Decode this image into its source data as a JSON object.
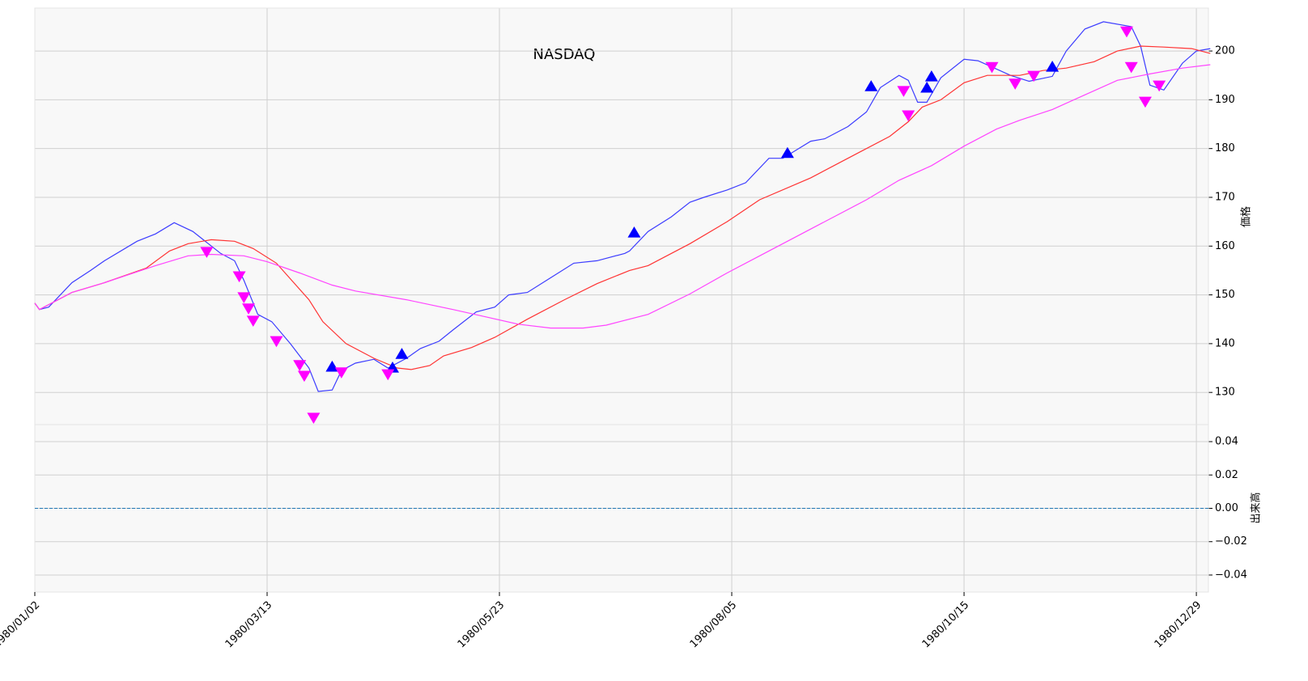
{
  "chart_data": [
    {
      "type": "line",
      "title": "NASDAQ",
      "ylabel": "価格",
      "xlim": [
        0,
        252.6
      ],
      "ylim": [
        123.4,
        208.8
      ],
      "yticks": [
        130,
        140,
        150,
        160,
        170,
        180,
        190,
        200
      ],
      "grid": true,
      "series": [
        {
          "color": "#3c3cff",
          "x": [
            0,
            1,
            3,
            8,
            12,
            15,
            22,
            26,
            30,
            34,
            40,
            43,
            45,
            48,
            51,
            55,
            59,
            61,
            64,
            66,
            69,
            73,
            76,
            80,
            83,
            87,
            90,
            95,
            99,
            102,
            106,
            111,
            116,
            121,
            127,
            128,
            132,
            137,
            141,
            144,
            149,
            153,
            158,
            161,
            167,
            170,
            175,
            179,
            182,
            186,
            188,
            190,
            192,
            195,
            200,
            203,
            210,
            214,
            219,
            222,
            226,
            230,
            236,
            238,
            240,
            243,
            247,
            250,
            253
          ],
          "values": [
            148.3,
            147,
            147.5,
            152.5,
            155,
            157,
            161,
            162.5,
            164.8,
            163,
            158.5,
            157,
            153,
            146,
            144.5,
            140,
            135,
            130.2,
            130.5,
            134.5,
            136,
            136.8,
            135,
            137,
            139,
            140.5,
            142.8,
            146.5,
            147.5,
            150,
            150.5,
            153.5,
            156.5,
            157,
            158.5,
            159,
            163,
            166,
            169,
            170,
            171.5,
            173,
            178,
            178,
            181.5,
            182,
            184.5,
            187.5,
            192.5,
            195,
            194,
            189.5,
            189.5,
            194.5,
            198.3,
            198,
            195,
            193.8,
            194.8,
            200,
            204.5,
            206,
            205,
            201,
            193,
            192,
            197.5,
            200,
            200.5
          ]
        },
        {
          "color": "#ff3333",
          "x": [
            0,
            1,
            8,
            15,
            24,
            29,
            33,
            38,
            43,
            47,
            52,
            59,
            62,
            67,
            73,
            78,
            81,
            85,
            88,
            94,
            99,
            106,
            114,
            121,
            128,
            132,
            141,
            149,
            156,
            167,
            177,
            184,
            188,
            191,
            195,
            200,
            205,
            212,
            217,
            222,
            228,
            233,
            238,
            243,
            249,
            253
          ],
          "values": [
            148.3,
            147,
            150.5,
            152.5,
            155.5,
            159,
            160.5,
            161.3,
            161,
            159.5,
            156.5,
            149,
            144.5,
            140,
            137,
            135,
            134.7,
            135.5,
            137.5,
            139.2,
            141.3,
            145,
            149,
            152.3,
            155,
            156,
            160.5,
            165,
            169.5,
            174,
            179,
            182.5,
            185.5,
            188.5,
            190,
            193.5,
            195,
            195,
            196,
            196.5,
            197.8,
            200,
            201,
            200.8,
            200.5,
            199.5
          ]
        },
        {
          "color": "#ff44ff",
          "x": [
            0,
            1,
            8,
            15,
            26,
            33,
            38,
            45,
            50,
            57,
            64,
            69,
            80,
            90,
            97,
            104,
            111,
            118,
            123,
            132,
            141,
            149,
            158,
            167,
            179,
            186,
            193,
            200,
            207,
            212,
            219,
            226,
            233,
            240,
            247,
            253
          ],
          "values": [
            148.3,
            147,
            150.5,
            152.5,
            156,
            158,
            158.3,
            158,
            156.8,
            154.5,
            152,
            150.8,
            149,
            147,
            145.5,
            144,
            143.2,
            143.2,
            143.8,
            146,
            150.2,
            154.5,
            159,
            163.5,
            169.5,
            173.5,
            176.5,
            180.5,
            184,
            185.8,
            188,
            191,
            194,
            195.3,
            196.5,
            197.2
          ]
        }
      ],
      "markers": [
        {
          "marker": "^",
          "color": "#0000ff",
          "x": [
            64,
            77,
            79,
            129,
            162,
            180,
            192,
            193,
            219
          ],
          "values": [
            135.2,
            135,
            137.8,
            162.7,
            179,
            192.7,
            192.4,
            194.7,
            196.7
          ]
        },
        {
          "marker": "v",
          "color": "#ff00ff",
          "x": [
            37,
            44,
            45,
            46,
            47,
            52,
            57,
            58,
            60,
            66,
            76,
            187,
            188,
            206,
            211,
            215,
            235,
            236,
            239,
            242
          ],
          "values": [
            158.9,
            153.9,
            149.6,
            147.3,
            144.8,
            140.6,
            135.7,
            133.5,
            124.9,
            134.2,
            133.8,
            191.9,
            186.9,
            196.8,
            193.4,
            195,
            204.1,
            196.8,
            189.7,
            193
          ]
        }
      ]
    },
    {
      "type": "line",
      "ylabel": "出来高",
      "xlim": [
        0,
        252.6
      ],
      "ylim": [
        -0.0502,
        0.0502
      ],
      "yticks": [
        {
          "value": -0.04,
          "label": "−0.04"
        },
        {
          "value": -0.02,
          "label": "−0.02"
        },
        {
          "value": 0,
          "label": "0.00"
        },
        0.02,
        0.04
      ],
      "grid": true,
      "hline": 0,
      "hline_color": "#1f77b4",
      "xticks": [
        {
          "value": 0,
          "label": "1980/01/02"
        },
        {
          "value": 50,
          "label": "1980/03/13"
        },
        {
          "value": 100,
          "label": "1980/05/23"
        },
        {
          "value": 150,
          "label": "1980/08/05"
        },
        {
          "value": 200,
          "label": "1980/10/15"
        },
        {
          "value": 250,
          "label": "1980/12/29"
        }
      ]
    }
  ]
}
